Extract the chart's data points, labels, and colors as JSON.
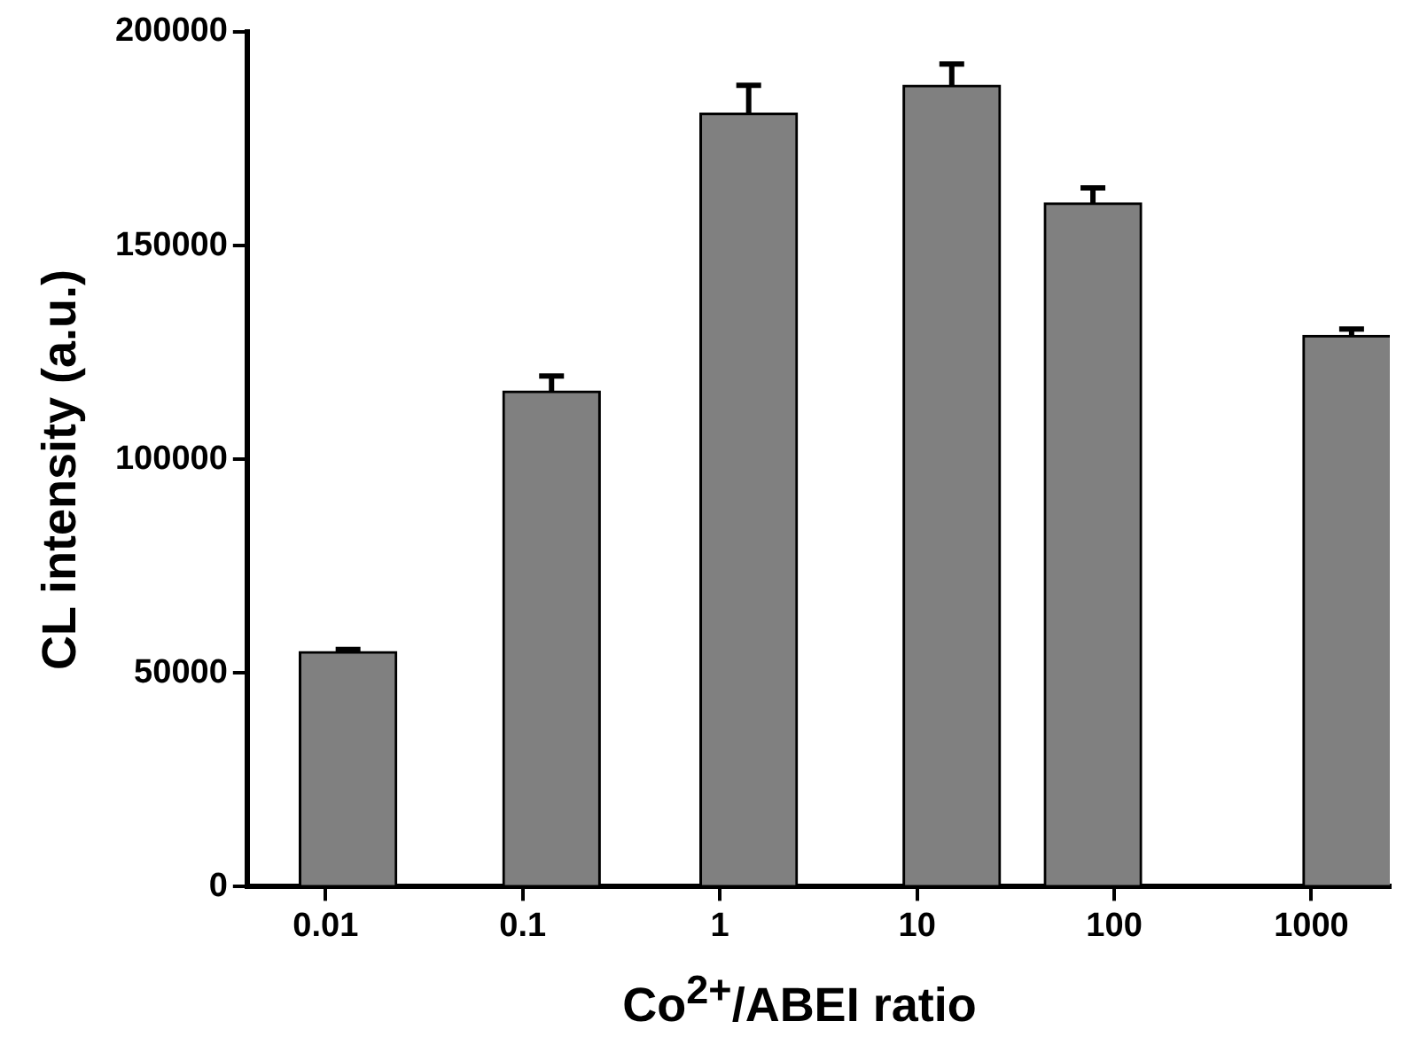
{
  "chart_data": {
    "type": "bar",
    "xlabel": "Co$^{2+}$/ABEI ratio",
    "ylabel": "CL intensity (a.u.)",
    "x": [
      0.013,
      0.14,
      1.4,
      15,
      78,
      1600
    ],
    "values": [
      55000,
      116000,
      181000,
      187500,
      160000,
      129000
    ],
    "errors": [
      500,
      3500,
      6500,
      5000,
      3500,
      1500
    ],
    "color": "#808080",
    "log": "x",
    "xlim": [
      0.004,
      2500
    ],
    "xticks": [
      0.01,
      0.1,
      1,
      10,
      100,
      1000
    ],
    "ylim": [
      0,
      200000
    ],
    "yticks": [
      0,
      50000,
      100000,
      150000,
      200000
    ],
    "grid": false,
    "legend": false
  }
}
